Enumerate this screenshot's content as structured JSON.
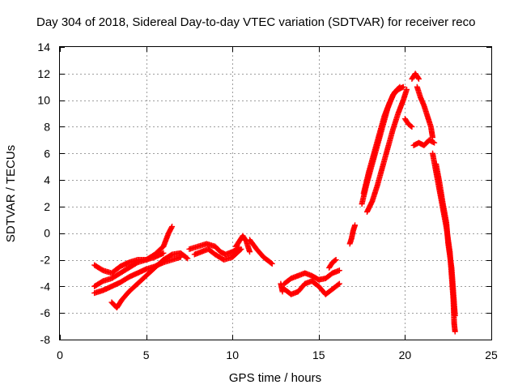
{
  "chart_data": {
    "type": "scatter",
    "title": "Day 304 of 2018, Sidereal Day-to-day VTEC variation (SDTVAR) for receiver reco",
    "xlabel": "GPS time / hours",
    "ylabel": "SDTVAR / TECUs",
    "xlim": [
      0,
      25
    ],
    "ylim": [
      -8,
      14
    ],
    "x_ticks": [
      0,
      5,
      10,
      15,
      20,
      25
    ],
    "y_ticks": [
      -8,
      -6,
      -4,
      -2,
      0,
      2,
      4,
      6,
      8,
      10,
      12,
      14
    ],
    "grid": true,
    "marker": "+",
    "series": [
      {
        "name": "SDTVAR",
        "color": "#ff0000",
        "tracks": [
          [
            [
              2.0,
              -2.4
            ],
            [
              2.5,
              -2.8
            ],
            [
              3.0,
              -3.0
            ],
            [
              3.5,
              -2.5
            ],
            [
              4.0,
              -2.2
            ],
            [
              4.5,
              -2.0
            ],
            [
              5.0,
              -2.0
            ],
            [
              5.5,
              -1.6
            ],
            [
              6.0,
              -1.0
            ],
            [
              6.3,
              0.0
            ],
            [
              6.5,
              0.5
            ]
          ],
          [
            [
              2.0,
              -4.0
            ],
            [
              2.5,
              -3.6
            ],
            [
              3.0,
              -3.4
            ],
            [
              3.5,
              -3.0
            ],
            [
              4.0,
              -2.6
            ],
            [
              4.5,
              -2.2
            ],
            [
              5.0,
              -2.0
            ],
            [
              5.5,
              -1.8
            ],
            [
              6.0,
              -1.5
            ]
          ],
          [
            [
              2.0,
              -4.5
            ],
            [
              2.5,
              -4.3
            ],
            [
              3.0,
              -4.0
            ],
            [
              3.5,
              -3.7
            ],
            [
              4.0,
              -3.3
            ],
            [
              4.5,
              -3.0
            ],
            [
              5.0,
              -2.7
            ],
            [
              5.5,
              -2.5
            ],
            [
              6.0,
              -2.2
            ],
            [
              6.5,
              -2.0
            ],
            [
              7.0,
              -1.8
            ]
          ],
          [
            [
              3.0,
              -5.2
            ],
            [
              3.3,
              -5.6
            ],
            [
              3.6,
              -5.0
            ],
            [
              4.0,
              -4.4
            ],
            [
              4.5,
              -3.8
            ],
            [
              5.0,
              -3.2
            ],
            [
              5.5,
              -2.6
            ],
            [
              6.0,
              -2.0
            ],
            [
              6.5,
              -1.6
            ],
            [
              7.0,
              -1.5
            ],
            [
              7.4,
              -1.9
            ]
          ],
          [
            [
              7.5,
              -1.2
            ],
            [
              8.0,
              -1.0
            ],
            [
              8.5,
              -0.8
            ],
            [
              9.0,
              -1.0
            ],
            [
              9.3,
              -1.4
            ],
            [
              9.6,
              -1.6
            ],
            [
              10.0,
              -1.4
            ],
            [
              10.4,
              -1.1
            ]
          ],
          [
            [
              7.8,
              -1.6
            ],
            [
              8.2,
              -1.4
            ],
            [
              8.6,
              -1.2
            ],
            [
              9.0,
              -1.6
            ],
            [
              9.5,
              -2.0
            ],
            [
              10.0,
              -1.8
            ],
            [
              10.5,
              -1.2
            ]
          ],
          [
            [
              10.2,
              -1.0
            ],
            [
              10.4,
              -0.6
            ],
            [
              10.6,
              -0.2
            ],
            [
              10.8,
              -0.6
            ],
            [
              11.0,
              -1.4
            ]
          ],
          [
            [
              11.0,
              -0.5
            ],
            [
              11.4,
              -1.2
            ],
            [
              11.8,
              -1.8
            ],
            [
              12.0,
              -2.0
            ],
            [
              12.3,
              -2.3
            ]
          ],
          [
            [
              13.0,
              -3.8
            ],
            [
              13.4,
              -3.4
            ],
            [
              13.8,
              -3.2
            ],
            [
              14.2,
              -3.0
            ],
            [
              14.6,
              -3.2
            ],
            [
              15.0,
              -3.5
            ],
            [
              15.4,
              -3.4
            ],
            [
              15.8,
              -3.0
            ],
            [
              16.2,
              -2.8
            ]
          ],
          [
            [
              13.0,
              -4.2
            ],
            [
              13.4,
              -4.6
            ],
            [
              13.8,
              -4.4
            ],
            [
              14.2,
              -3.8
            ],
            [
              14.6,
              -3.6
            ],
            [
              15.0,
              -4.0
            ],
            [
              15.4,
              -4.6
            ],
            [
              15.8,
              -4.2
            ],
            [
              16.2,
              -3.8
            ]
          ],
          [
            [
              12.8,
              -3.8
            ],
            [
              12.9,
              -4.4
            ]
          ],
          [
            [
              15.6,
              -2.6
            ],
            [
              15.8,
              -2.2
            ],
            [
              16.0,
              -2.0
            ]
          ],
          [
            [
              16.8,
              -0.8
            ],
            [
              16.9,
              -0.4
            ],
            [
              17.0,
              0.2
            ],
            [
              17.1,
              0.6
            ]
          ],
          [
            [
              17.5,
              2.2
            ],
            [
              17.8,
              3.8
            ],
            [
              18.1,
              5.2
            ],
            [
              18.4,
              6.6
            ],
            [
              18.7,
              8.0
            ],
            [
              19.0,
              9.4
            ],
            [
              19.3,
              10.4
            ],
            [
              19.6,
              10.8
            ],
            [
              19.9,
              11.0
            ]
          ],
          [
            [
              17.6,
              3.0
            ],
            [
              17.9,
              4.6
            ],
            [
              18.2,
              6.0
            ],
            [
              18.5,
              7.4
            ],
            [
              18.8,
              8.8
            ],
            [
              19.1,
              9.8
            ],
            [
              19.4,
              10.6
            ],
            [
              19.7,
              11.0
            ]
          ],
          [
            [
              17.8,
              1.6
            ],
            [
              18.1,
              2.4
            ],
            [
              18.4,
              3.6
            ],
            [
              18.7,
              5.0
            ],
            [
              19.0,
              6.4
            ],
            [
              19.3,
              7.8
            ],
            [
              19.6,
              9.0
            ],
            [
              19.9,
              10.0
            ],
            [
              20.1,
              10.8
            ]
          ],
          [
            [
              20.4,
              11.6
            ],
            [
              20.6,
              12.0
            ],
            [
              20.8,
              11.6
            ]
          ],
          [
            [
              20.7,
              11.0
            ],
            [
              20.9,
              10.2
            ],
            [
              21.1,
              9.6
            ],
            [
              21.3,
              8.8
            ],
            [
              21.5,
              8.0
            ],
            [
              21.6,
              7.2
            ]
          ],
          [
            [
              20.0,
              8.6
            ],
            [
              20.2,
              8.2
            ],
            [
              20.4,
              8.0
            ]
          ],
          [
            [
              20.5,
              6.6
            ],
            [
              20.8,
              6.8
            ],
            [
              21.1,
              6.6
            ],
            [
              21.4,
              7.0
            ],
            [
              21.7,
              6.8
            ]
          ],
          [
            [
              21.6,
              6.0
            ],
            [
              21.8,
              4.6
            ],
            [
              22.0,
              3.2
            ],
            [
              22.2,
              1.8
            ],
            [
              22.4,
              0.4
            ],
            [
              22.6,
              -1.4
            ],
            [
              22.7,
              -3.2
            ],
            [
              22.8,
              -5.0
            ],
            [
              22.85,
              -6.8
            ],
            [
              22.9,
              -7.4
            ]
          ],
          [
            [
              21.8,
              5.2
            ],
            [
              22.0,
              3.8
            ],
            [
              22.2,
              2.2
            ],
            [
              22.4,
              0.8
            ],
            [
              22.5,
              -0.8
            ],
            [
              22.7,
              -2.6
            ],
            [
              22.8,
              -4.4
            ],
            [
              22.9,
              -6.2
            ]
          ]
        ]
      }
    ]
  }
}
